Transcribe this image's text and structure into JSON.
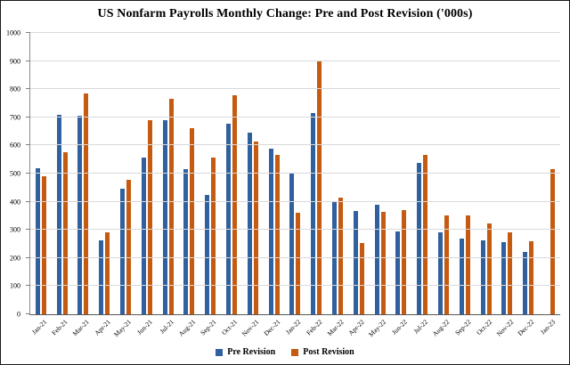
{
  "chart_data": {
    "type": "bar",
    "title": "US Nonfarm Payrolls Monthly Change: Pre and Post Revision ('000s)",
    "categories": [
      "Jan-21",
      "Feb-21",
      "Mar-21",
      "Apr-21",
      "May-21",
      "Jun-21",
      "Jul-21",
      "Aug-21",
      "Sep-21",
      "Oct-21",
      "Nov-21",
      "Dec-21",
      "Jan-22",
      "Feb-22",
      "Mar-22",
      "Apr-22",
      "May-22",
      "Jun-22",
      "Jul-22",
      "Aug-22",
      "Sep-22",
      "Oct-22",
      "Nov-22",
      "Dec-22",
      "Jan-23"
    ],
    "series": [
      {
        "name": "Pre Revision",
        "color": "#31609E",
        "values": [
          520,
          710,
          705,
          263,
          445,
          557,
          689,
          517,
          424,
          677,
          647,
          588,
          504,
          714,
          398,
          368,
          390,
          293,
          537,
          292,
          269,
          263,
          256,
          223,
          null
        ]
      },
      {
        "name": "Post Revision",
        "color": "#C55A11",
        "values": [
          490,
          575,
          785,
          290,
          478,
          690,
          766,
          663,
          557,
          780,
          614,
          568,
          360,
          900,
          414,
          254,
          364,
          370,
          568,
          352,
          350,
          324,
          290,
          260,
          517
        ]
      }
    ],
    "ylim": [
      0,
      1000
    ],
    "ytick_step": 100,
    "grid": true,
    "legend_position": "bottom"
  }
}
